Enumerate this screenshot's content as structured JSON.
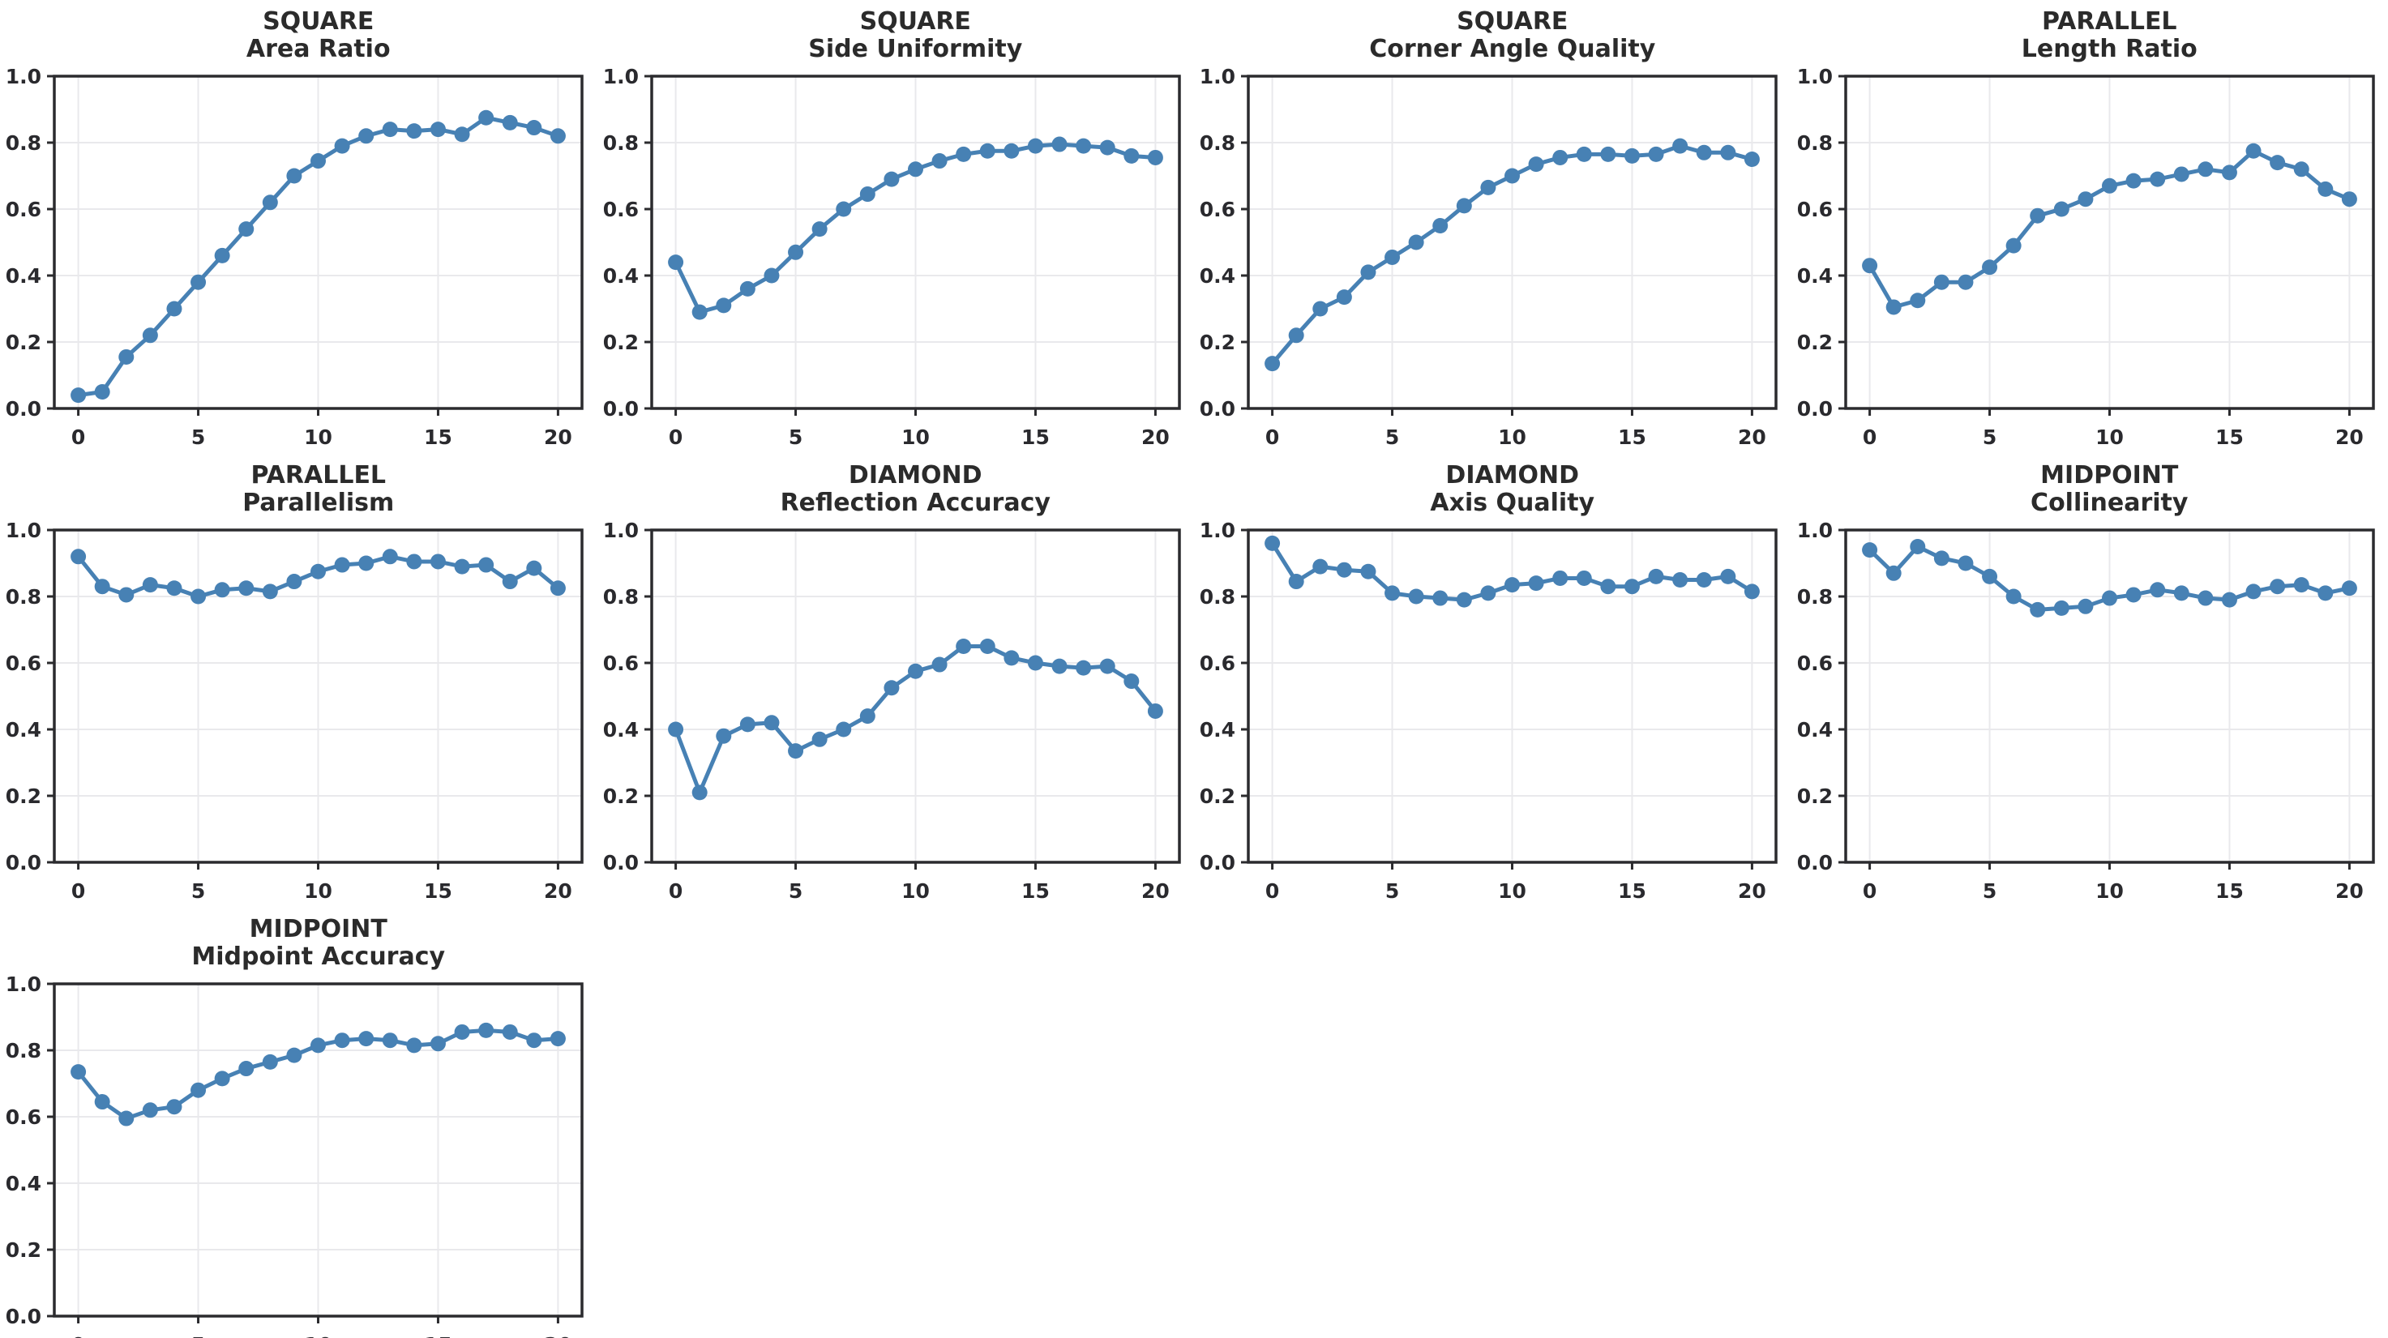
{
  "figure": {
    "background_color": "#ffffff",
    "line_color": "#4781b4",
    "marker_color": "#4781b4",
    "spine_color": "#2b2b2e",
    "grid_color": "#e9e9ec",
    "title_color": "#2b2b2b",
    "tick_label_color": "#2a2a2e"
  },
  "axis": {
    "xlim": [
      -1,
      21
    ],
    "ylim": [
      0.0,
      1.0
    ],
    "x_ticks": [
      0,
      5,
      10,
      15,
      20
    ],
    "x_tick_labels": [
      "0",
      "5",
      "10",
      "15",
      "20"
    ],
    "y_ticks": [
      0.0,
      0.2,
      0.4,
      0.6,
      0.8,
      1.0
    ],
    "y_tick_labels": [
      "0.0",
      "0.2",
      "0.4",
      "0.6",
      "0.8",
      "1.0"
    ],
    "grid": true,
    "legend": "none"
  },
  "chart_data": [
    {
      "type": "line",
      "group": "SQUARE",
      "metric": "Area Ratio",
      "x": [
        0,
        1,
        2,
        3,
        4,
        5,
        6,
        7,
        8,
        9,
        10,
        11,
        12,
        13,
        14,
        15,
        16,
        17,
        18,
        19,
        20
      ],
      "values": [
        0.04,
        0.05,
        0.155,
        0.22,
        0.3,
        0.38,
        0.46,
        0.54,
        0.62,
        0.7,
        0.745,
        0.79,
        0.82,
        0.84,
        0.835,
        0.84,
        0.825,
        0.875,
        0.86,
        0.845,
        0.82
      ]
    },
    {
      "type": "line",
      "group": "SQUARE",
      "metric": "Side Uniformity",
      "x": [
        0,
        1,
        2,
        3,
        4,
        5,
        6,
        7,
        8,
        9,
        10,
        11,
        12,
        13,
        14,
        15,
        16,
        17,
        18,
        19,
        20
      ],
      "values": [
        0.44,
        0.29,
        0.31,
        0.36,
        0.4,
        0.47,
        0.54,
        0.6,
        0.645,
        0.69,
        0.72,
        0.745,
        0.765,
        0.775,
        0.775,
        0.79,
        0.795,
        0.79,
        0.785,
        0.76,
        0.755
      ]
    },
    {
      "type": "line",
      "group": "SQUARE",
      "metric": "Corner Angle Quality",
      "x": [
        0,
        1,
        2,
        3,
        4,
        5,
        6,
        7,
        8,
        9,
        10,
        11,
        12,
        13,
        14,
        15,
        16,
        17,
        18,
        19,
        20
      ],
      "values": [
        0.135,
        0.22,
        0.3,
        0.335,
        0.41,
        0.455,
        0.5,
        0.55,
        0.61,
        0.665,
        0.7,
        0.735,
        0.755,
        0.765,
        0.765,
        0.76,
        0.765,
        0.79,
        0.77,
        0.77,
        0.75
      ]
    },
    {
      "type": "line",
      "group": "PARALLEL",
      "metric": "Length Ratio",
      "x": [
        0,
        1,
        2,
        3,
        4,
        5,
        6,
        7,
        8,
        9,
        10,
        11,
        12,
        13,
        14,
        15,
        16,
        17,
        18,
        19,
        20
      ],
      "values": [
        0.43,
        0.305,
        0.325,
        0.38,
        0.38,
        0.425,
        0.49,
        0.58,
        0.6,
        0.63,
        0.67,
        0.685,
        0.69,
        0.705,
        0.72,
        0.71,
        0.775,
        0.74,
        0.72,
        0.66,
        0.63
      ]
    },
    {
      "type": "line",
      "group": "PARALLEL",
      "metric": "Parallelism",
      "x": [
        0,
        1,
        2,
        3,
        4,
        5,
        6,
        7,
        8,
        9,
        10,
        11,
        12,
        13,
        14,
        15,
        16,
        17,
        18,
        19,
        20
      ],
      "values": [
        0.92,
        0.83,
        0.805,
        0.835,
        0.825,
        0.8,
        0.82,
        0.825,
        0.815,
        0.845,
        0.875,
        0.895,
        0.9,
        0.92,
        0.905,
        0.905,
        0.89,
        0.895,
        0.845,
        0.885,
        0.825
      ]
    },
    {
      "type": "line",
      "group": "DIAMOND",
      "metric": "Reflection Accuracy",
      "x": [
        0,
        1,
        2,
        3,
        4,
        5,
        6,
        7,
        8,
        9,
        10,
        11,
        12,
        13,
        14,
        15,
        16,
        17,
        18,
        19,
        20
      ],
      "values": [
        0.4,
        0.21,
        0.38,
        0.415,
        0.42,
        0.335,
        0.37,
        0.4,
        0.44,
        0.525,
        0.575,
        0.595,
        0.65,
        0.65,
        0.615,
        0.6,
        0.59,
        0.585,
        0.59,
        0.545,
        0.455
      ]
    },
    {
      "type": "line",
      "group": "DIAMOND",
      "metric": "Axis Quality",
      "x": [
        0,
        1,
        2,
        3,
        4,
        5,
        6,
        7,
        8,
        9,
        10,
        11,
        12,
        13,
        14,
        15,
        16,
        17,
        18,
        19,
        20
      ],
      "values": [
        0.96,
        0.845,
        0.89,
        0.88,
        0.875,
        0.81,
        0.8,
        0.795,
        0.79,
        0.81,
        0.835,
        0.84,
        0.855,
        0.855,
        0.83,
        0.83,
        0.86,
        0.85,
        0.85,
        0.86,
        0.815
      ]
    },
    {
      "type": "line",
      "group": "MIDPOINT",
      "metric": "Collinearity",
      "x": [
        0,
        1,
        2,
        3,
        4,
        5,
        6,
        7,
        8,
        9,
        10,
        11,
        12,
        13,
        14,
        15,
        16,
        17,
        18,
        19,
        20
      ],
      "values": [
        0.94,
        0.87,
        0.95,
        0.915,
        0.9,
        0.86,
        0.8,
        0.76,
        0.765,
        0.77,
        0.795,
        0.805,
        0.82,
        0.81,
        0.795,
        0.79,
        0.815,
        0.83,
        0.835,
        0.81,
        0.825
      ]
    },
    {
      "type": "line",
      "group": "MIDPOINT",
      "metric": "Midpoint Accuracy",
      "x": [
        0,
        1,
        2,
        3,
        4,
        5,
        6,
        7,
        8,
        9,
        10,
        11,
        12,
        13,
        14,
        15,
        16,
        17,
        18,
        19,
        20
      ],
      "values": [
        0.735,
        0.645,
        0.595,
        0.62,
        0.63,
        0.68,
        0.715,
        0.745,
        0.765,
        0.785,
        0.815,
        0.83,
        0.835,
        0.83,
        0.815,
        0.82,
        0.855,
        0.86,
        0.855,
        0.83,
        0.835
      ]
    }
  ]
}
